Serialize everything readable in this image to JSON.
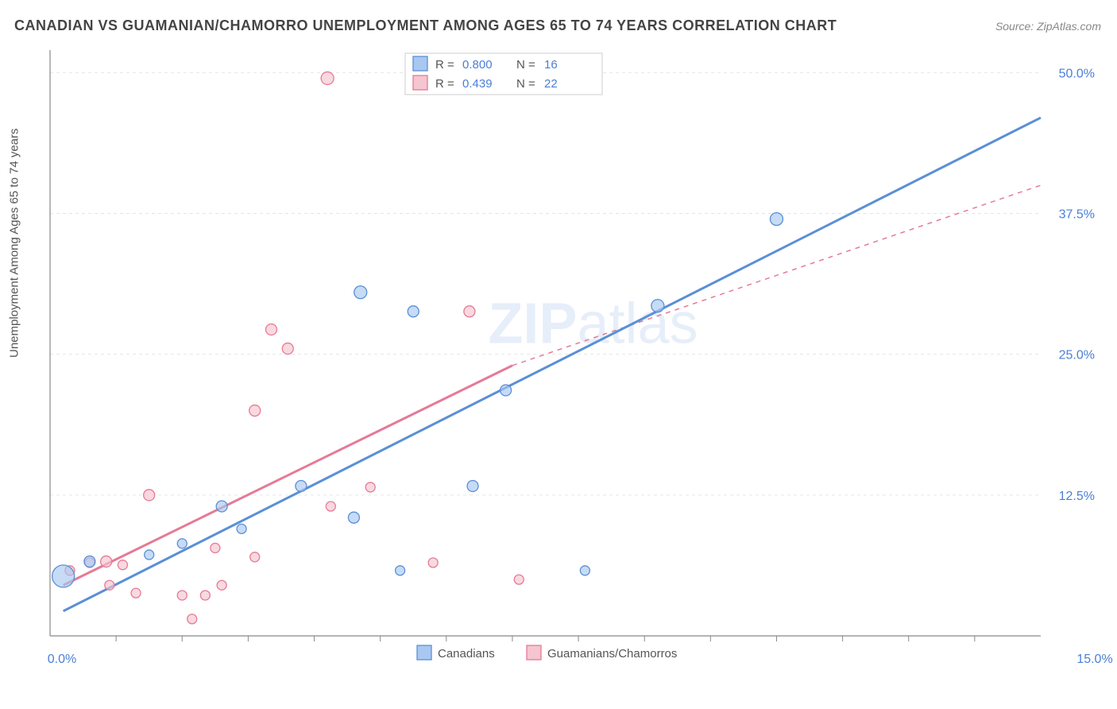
{
  "title": "CANADIAN VS GUAMANIAN/CHAMORRO UNEMPLOYMENT AMONG AGES 65 TO 74 YEARS CORRELATION CHART",
  "source": "Source: ZipAtlas.com",
  "ylabel": "Unemployment Among Ages 65 to 74 years",
  "watermark": "ZIPatlas",
  "chart": {
    "type": "scatter",
    "xlim": [
      0,
      15
    ],
    "ylim": [
      0,
      52
    ],
    "xticks": [
      0,
      15
    ],
    "xtick_labels": [
      "0.0%",
      "15.0%"
    ],
    "yticks": [
      12.5,
      25,
      37.5,
      50
    ],
    "ytick_labels": [
      "12.5%",
      "25.0%",
      "37.5%",
      "50.0%"
    ],
    "minor_xticks": [
      1,
      2,
      3,
      4,
      5,
      6,
      7,
      8,
      9,
      10,
      11,
      12,
      13,
      14
    ],
    "grid_color": "#e6e6e6",
    "axis_color": "#888888",
    "background": "#ffffff",
    "series": [
      {
        "name": "Canadians",
        "color_fill": "#a8c8f0",
        "color_stroke": "#5a8fd6",
        "R": "0.800",
        "N": "16",
        "trend": {
          "x1": 0.2,
          "y1": 2.2,
          "x2": 15,
          "y2": 46.0,
          "dash": "none",
          "width": 3
        },
        "points": [
          {
            "x": 0.2,
            "y": 5.3,
            "r": 14
          },
          {
            "x": 0.6,
            "y": 6.6,
            "r": 7
          },
          {
            "x": 1.5,
            "y": 7.2,
            "r": 6
          },
          {
            "x": 2.0,
            "y": 8.2,
            "r": 6
          },
          {
            "x": 2.6,
            "y": 11.5,
            "r": 7
          },
          {
            "x": 2.9,
            "y": 9.5,
            "r": 6
          },
          {
            "x": 3.8,
            "y": 13.3,
            "r": 7
          },
          {
            "x": 4.6,
            "y": 10.5,
            "r": 7
          },
          {
            "x": 4.7,
            "y": 30.5,
            "r": 8
          },
          {
            "x": 5.3,
            "y": 5.8,
            "r": 6
          },
          {
            "x": 5.5,
            "y": 28.8,
            "r": 7
          },
          {
            "x": 6.4,
            "y": 13.3,
            "r": 7
          },
          {
            "x": 6.9,
            "y": 21.8,
            "r": 7
          },
          {
            "x": 8.1,
            "y": 5.8,
            "r": 6
          },
          {
            "x": 9.2,
            "y": 29.3,
            "r": 8
          },
          {
            "x": 11.0,
            "y": 37.0,
            "r": 8
          }
        ]
      },
      {
        "name": "Guamanians/Chamorros",
        "color_fill": "#f5c5d0",
        "color_stroke": "#e57a96",
        "R": "0.439",
        "N": "22",
        "trend_solid": {
          "x1": 0.2,
          "y1": 4.5,
          "x2": 7.0,
          "y2": 24.0,
          "dash": "none",
          "width": 3
        },
        "trend_dash": {
          "x1": 7.0,
          "y1": 24.0,
          "x2": 15,
          "y2": 40.0,
          "dash": "6,6",
          "width": 1.5
        },
        "points": [
          {
            "x": 0.3,
            "y": 5.8,
            "r": 6
          },
          {
            "x": 0.6,
            "y": 6.5,
            "r": 6
          },
          {
            "x": 0.85,
            "y": 6.6,
            "r": 7
          },
          {
            "x": 0.9,
            "y": 4.5,
            "r": 6
          },
          {
            "x": 1.1,
            "y": 6.3,
            "r": 6
          },
          {
            "x": 1.3,
            "y": 3.8,
            "r": 6
          },
          {
            "x": 1.5,
            "y": 12.5,
            "r": 7
          },
          {
            "x": 2.0,
            "y": 3.6,
            "r": 6
          },
          {
            "x": 2.15,
            "y": 1.5,
            "r": 6
          },
          {
            "x": 2.35,
            "y": 3.6,
            "r": 6
          },
          {
            "x": 2.5,
            "y": 7.8,
            "r": 6
          },
          {
            "x": 2.6,
            "y": 4.5,
            "r": 6
          },
          {
            "x": 3.1,
            "y": 7.0,
            "r": 6
          },
          {
            "x": 3.1,
            "y": 20.0,
            "r": 7
          },
          {
            "x": 3.35,
            "y": 27.2,
            "r": 7
          },
          {
            "x": 3.6,
            "y": 25.5,
            "r": 7
          },
          {
            "x": 4.2,
            "y": 49.5,
            "r": 8
          },
          {
            "x": 4.25,
            "y": 11.5,
            "r": 6
          },
          {
            "x": 4.85,
            "y": 13.2,
            "r": 6
          },
          {
            "x": 5.8,
            "y": 6.5,
            "r": 6
          },
          {
            "x": 6.35,
            "y": 28.8,
            "r": 7
          },
          {
            "x": 7.1,
            "y": 5.0,
            "r": 6
          }
        ]
      }
    ],
    "legend_top": {
      "rows": [
        {
          "swatch_fill": "#a8c8f0",
          "swatch_stroke": "#5a8fd6",
          "r_label": "R =",
          "r_val": "0.800",
          "n_label": "N =",
          "n_val": "16"
        },
        {
          "swatch_fill": "#f5c5d0",
          "swatch_stroke": "#e57a96",
          "r_label": "R =",
          "r_val": "0.439",
          "n_label": "N =",
          "n_val": "22"
        }
      ]
    },
    "legend_bottom": {
      "items": [
        {
          "swatch_fill": "#a8c8f0",
          "swatch_stroke": "#5a8fd6",
          "label": "Canadians"
        },
        {
          "swatch_fill": "#f5c5d0",
          "swatch_stroke": "#e57a96",
          "label": "Guamanians/Chamorros"
        }
      ]
    }
  }
}
